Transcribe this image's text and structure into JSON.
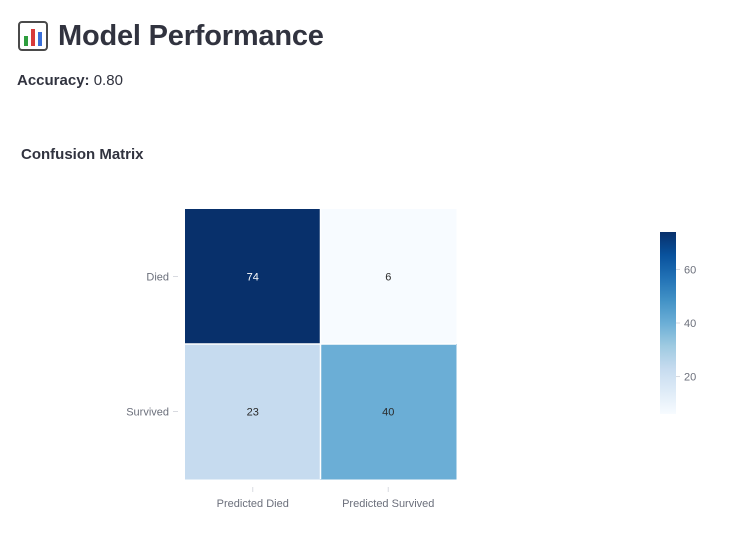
{
  "header": {
    "title": "Model Performance",
    "icon": "bar-chart-icon"
  },
  "accuracy": {
    "label": "Accuracy:",
    "value": "0.80"
  },
  "section": {
    "title": "Confusion Matrix"
  },
  "chart_data": {
    "type": "heatmap",
    "x_categories": [
      "Predicted Died",
      "Predicted Survived"
    ],
    "y_categories": [
      "Died",
      "Survived"
    ],
    "values": [
      [
        74,
        6
      ],
      [
        23,
        40
      ]
    ],
    "colorscale": "Blues",
    "colorbar": {
      "range": [
        6,
        74
      ],
      "ticks": [
        20,
        40,
        60
      ]
    },
    "colors": {
      "low": "#f7fbff",
      "high": "#08306b"
    }
  }
}
